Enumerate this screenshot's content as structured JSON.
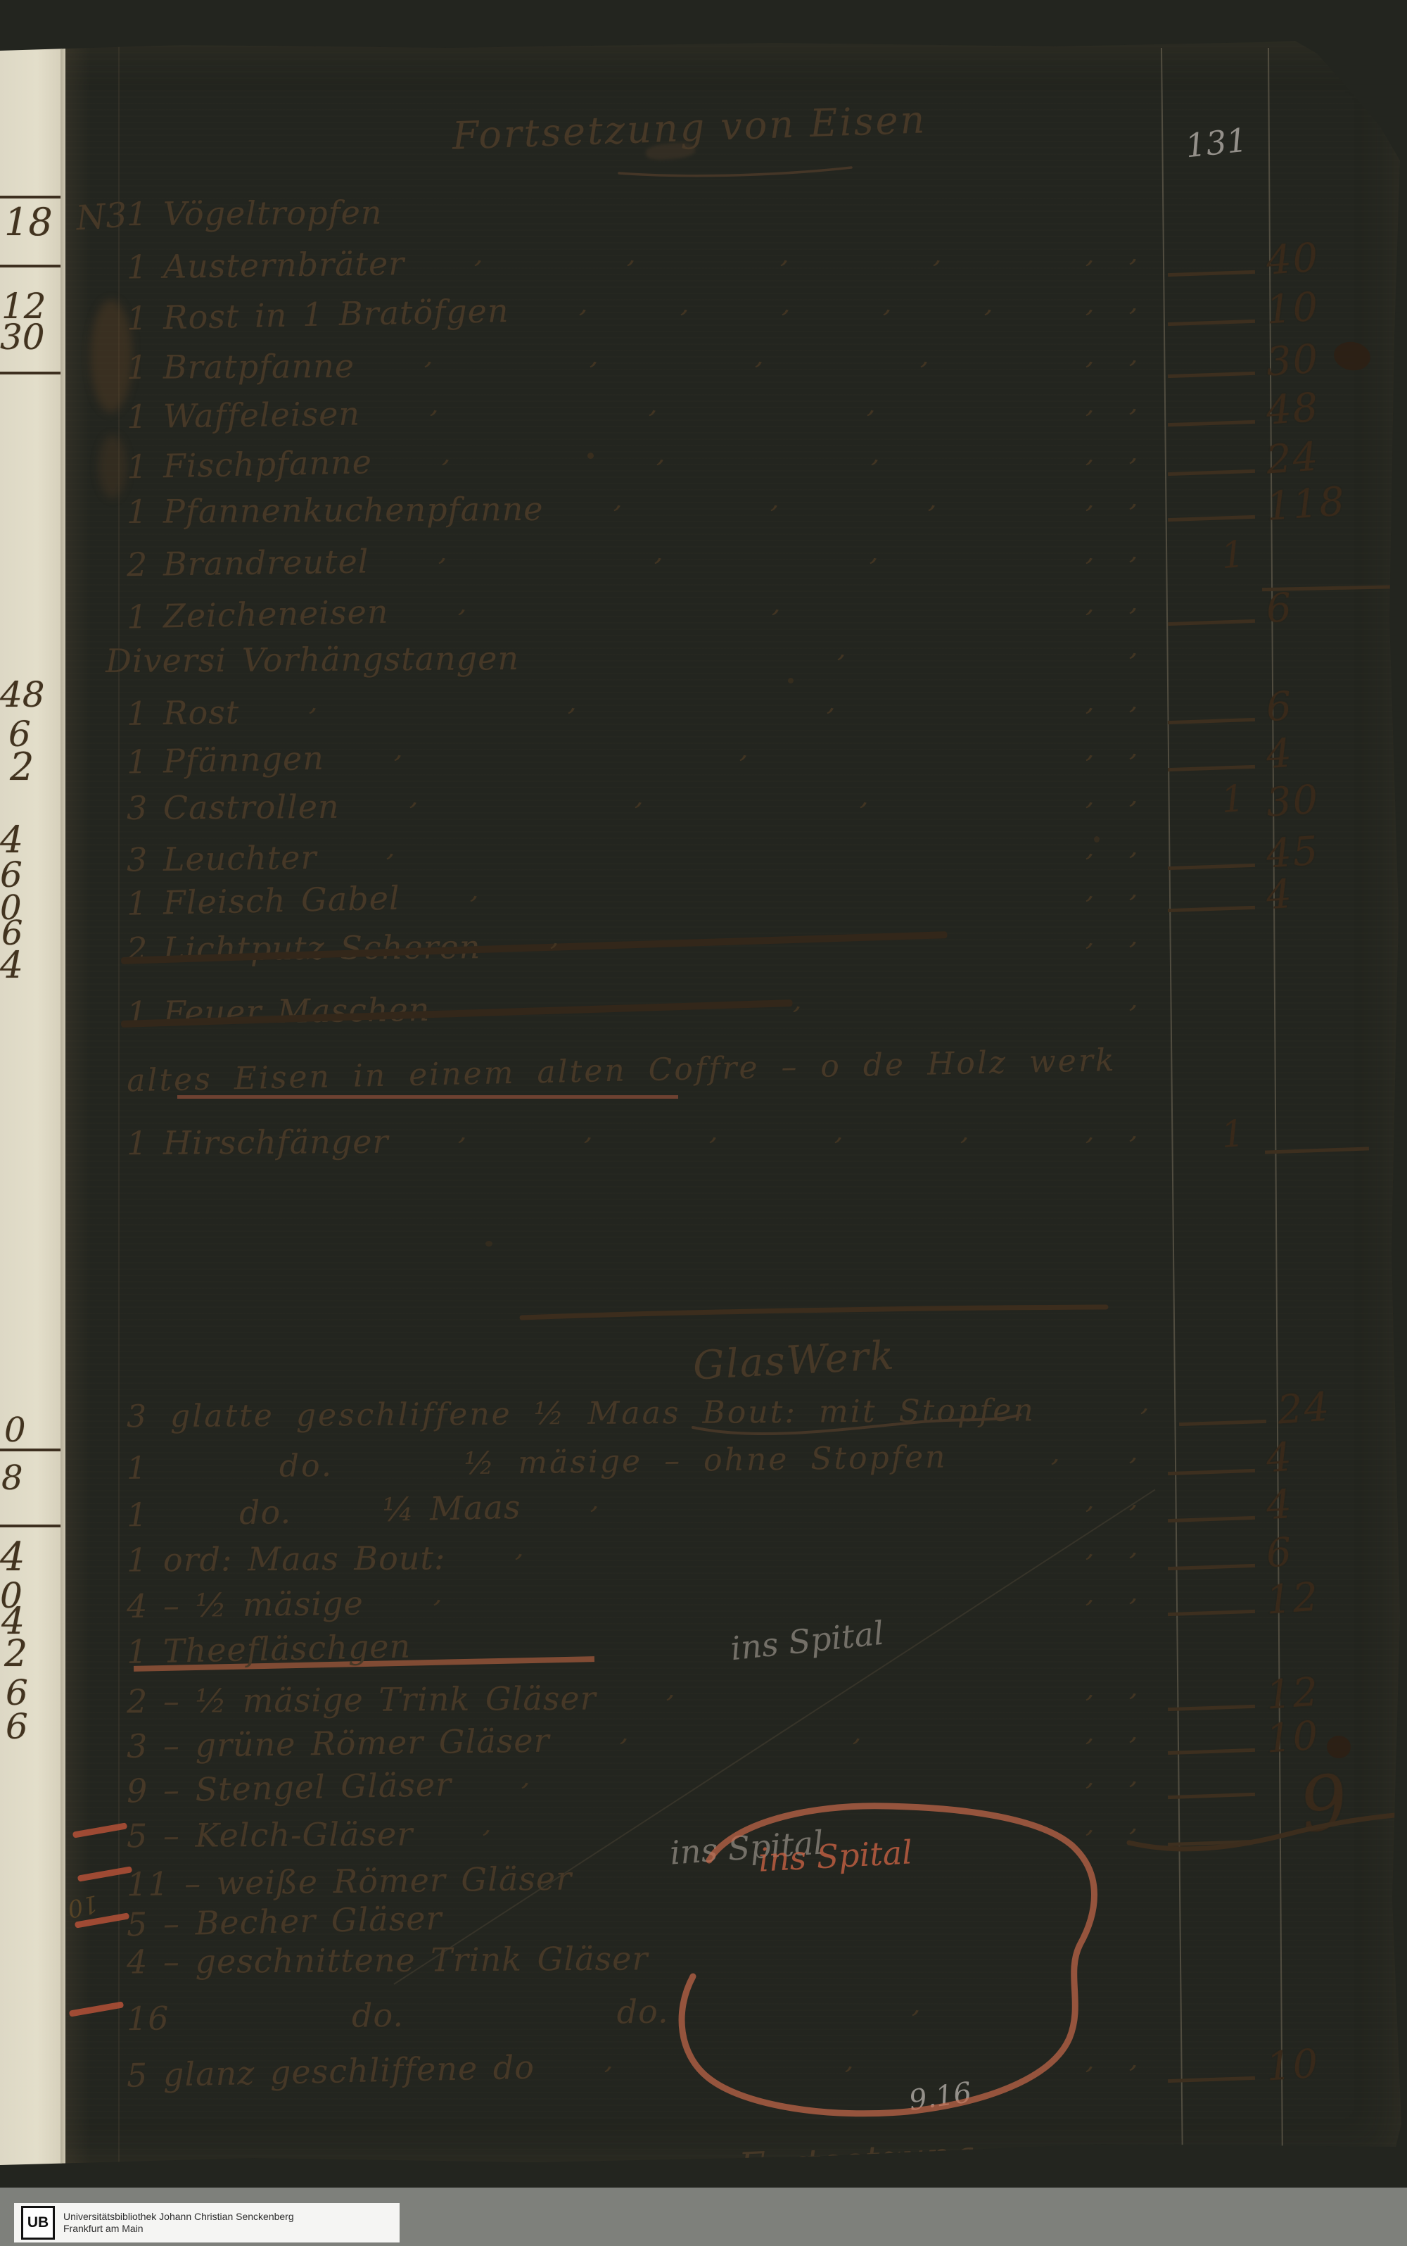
{
  "document": {
    "page_number_pencil": "131",
    "header_title": "Fortsetzung von Eisen",
    "margin_note": "N3",
    "section2_heading": "GlasWerk",
    "footer_word": "Fortsetzung",
    "pencil_sum_note": "9.16",
    "pencil_ghost": "10",
    "ink_color": "#463827",
    "accent_red": "#c4654a",
    "pencil_grey": "#94908a"
  },
  "iron_items": [
    {
      "text": "1 Vögeltropfen",
      "ticks": 0
    },
    {
      "text": "1 Austernbräter",
      "ticks": 5,
      "dash": true,
      "kreuzer": "40"
    },
    {
      "text": "1 Rost in 1 Bratöfgen",
      "ticks": 6,
      "dash": true,
      "kreuzer": "10"
    },
    {
      "text": "1 Bratpfanne",
      "ticks": 5,
      "dash": true,
      "kreuzer": "30"
    },
    {
      "text": "1 Waffeleisen",
      "ticks": 4,
      "dash": true,
      "kreuzer": "48"
    },
    {
      "text": "1 Fischpfanne",
      "ticks": 4,
      "dash": true,
      "kreuzer": "24"
    },
    {
      "text": "1 Pfannenkuchenpfanne",
      "ticks": 4,
      "dash": true,
      "kreuzer": "118"
    },
    {
      "text": "2 Brandreutel",
      "ticks": 4,
      "florin": "1",
      "rule_after": true
    },
    {
      "text": "1 Zeicheneisen",
      "ticks": 3,
      "dash": true,
      "kreuzer": "6"
    },
    {
      "text": "Diversi Vorhängstangen",
      "ticks": 1,
      "money_tick": true,
      "noindent": true
    },
    {
      "text": "1 Rost",
      "ticks": 4,
      "dash": true,
      "kreuzer": "6"
    },
    {
      "text": "1 Pfänngen",
      "ticks": 3,
      "dash": true,
      "kreuzer": "4"
    },
    {
      "text": "3 Castrollen",
      "ticks": 4,
      "florin": "1",
      "kreuzer": "30"
    },
    {
      "text": "3 Leuchter",
      "ticks": 2,
      "dash": true,
      "kreuzer": "45"
    },
    {
      "text": "1 Fleisch Gabel",
      "ticks": 2,
      "dash": true,
      "kreuzer": "4"
    },
    {
      "text": "2 Lichtputz Scheren",
      "ticks": 2,
      "struck": true,
      "money_tick": true
    },
    {
      "text": "1 Feuer Maschen",
      "ticks": 1,
      "struck": true,
      "money_tick": true
    },
    {
      "text": "altes Eisen in einem alten Coffre – o de Holz werk",
      "ticks": 0,
      "wide": true
    },
    {
      "text": "1 Hirschfänger",
      "ticks": 6,
      "florin": "1",
      "dash_after_florin": true
    }
  ],
  "glass_items": [
    {
      "text": "3 glatte geschliffene ½ Maas Bout: mit Stopfen",
      "ticks": 0,
      "dash": true,
      "kreuzer": "24",
      "wide": true
    },
    {
      "text": "1      do.      ½ mäsige – ohne Stopfen",
      "ticks": 1,
      "dash": true,
      "kreuzer": "4",
      "wide": true
    },
    {
      "text": "1      do.      ¼ Maas",
      "ticks": 2,
      "dash": true,
      "kreuzer": "4"
    },
    {
      "text": "1 ord: Maas Bout:",
      "ticks": 2,
      "dash": true,
      "kreuzer": "6"
    },
    {
      "text": "4 – ½ mäsige",
      "ticks": 2,
      "dash": true,
      "kreuzer": "12"
    },
    {
      "text": "1 Theefläschgen",
      "ticks": 0
    },
    {
      "text": "2 – ½ mäsige Trink Gläser",
      "ticks": 2,
      "dash": true,
      "kreuzer": "12"
    },
    {
      "text": "3 – grüne Römer Gläser",
      "ticks": 3,
      "dash": true,
      "kreuzer": "10"
    },
    {
      "text": "9 – Stengel Gläser",
      "ticks": 2,
      "dash": true,
      "kreuzer": "9",
      "big": true
    },
    {
      "text": "5 – Kelch-Gläser",
      "ticks": 2,
      "dash": true
    },
    {
      "text": "11 – weiße Römer Gläser",
      "ticks": 0
    },
    {
      "text": "5 – Becher Gläser",
      "ticks": 0
    },
    {
      "text": "4 – geschnittene Trink Gläser",
      "ticks": 0
    },
    {
      "text": "16            do.              do.",
      "ticks": 1
    },
    {
      "text": "5 glanz geschliffene do",
      "ticks": 3,
      "dash": true,
      "kreuzer": "10"
    }
  ],
  "annotations": [
    {
      "text": "ins Spital",
      "style": "pencil"
    },
    {
      "text": "ins Spital",
      "style": "pencil"
    },
    {
      "text": "ins Spital",
      "style": "red"
    }
  ],
  "left_margin_numbers": [
    "18",
    "12",
    "30",
    "48",
    "6",
    "2",
    "4",
    "6",
    "0",
    "6",
    "4",
    "0",
    "8",
    "4",
    "0",
    "4",
    "2",
    "6",
    "6"
  ],
  "library_footer": {
    "logo": "UB",
    "line1": "Universitätsbibliothek Johann Christian Senckenberg",
    "line2": "Frankfurt am Main"
  }
}
